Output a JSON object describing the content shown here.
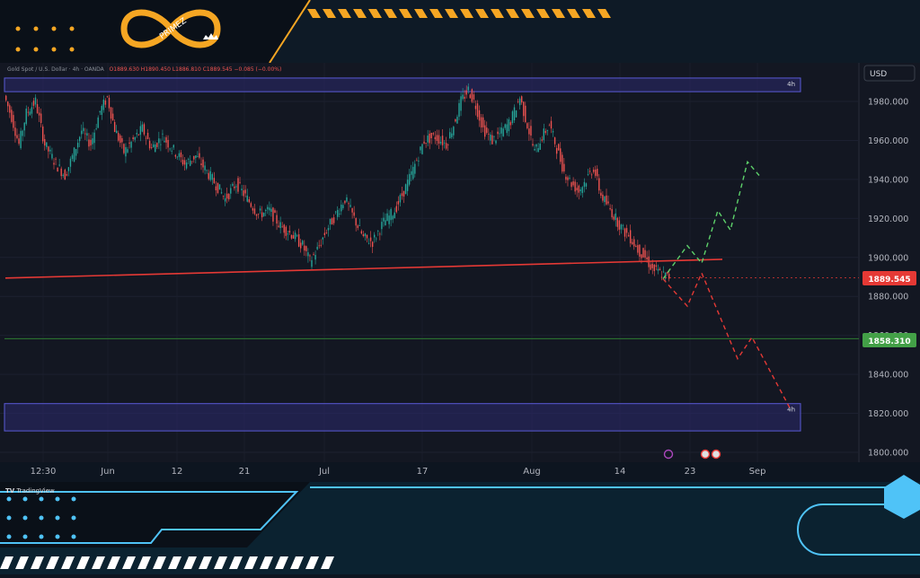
{
  "header": {
    "symbol_line": "Gold Spot / U.S. Dollar · 4h · OANDA",
    "ohlc_line": "O1889.630 H1890.450 L1886.810 C1889.545 −0.085 (−0.00%)"
  },
  "brand": {
    "logo_text": "PRIMEZ",
    "platform": "TradingView"
  },
  "price_axis": {
    "currency": "USD",
    "current_price": "1889.545",
    "target_price": "1858.310"
  },
  "zones": {
    "top_tag": "4h",
    "bottom_tag": "4h"
  },
  "colors": {
    "up": "#26a69a",
    "down": "#ef5350",
    "support_line": "#e53935",
    "target_line": "#2e7d32",
    "zone_fill": "#2b2a6e",
    "zone_border": "#5a5ad6",
    "bull_path": "#5dd16a",
    "bear_path": "#e53935",
    "accent_gold": "#f5a623",
    "accent_cyan": "#4fc3f7"
  },
  "chart_data": {
    "type": "candlestick",
    "title": "Gold Spot / U.S. Dollar · 4h · OANDA",
    "xlabel": "",
    "ylabel": "",
    "ylim": [
      1796,
      1994
    ],
    "x_tick_labels": [
      "12:30",
      "Jun",
      "12",
      "21",
      "Jul",
      "17",
      "Aug",
      "14",
      "23",
      "Sep"
    ],
    "y_ticks": [
      1800,
      1820,
      1840,
      1860,
      1880,
      1900,
      1920,
      1940,
      1960,
      1980
    ],
    "y_tick_labels": [
      "1800.000",
      "1820.000",
      "1840.000",
      "1860.000",
      "1880.000",
      "1900.000",
      "1920.000",
      "1940.000",
      "1960.000",
      "1980.000"
    ],
    "grid": true,
    "price_path_anchors": [
      [
        0,
        1983
      ],
      [
        4,
        1972
      ],
      [
        8,
        1958
      ],
      [
        12,
        1974
      ],
      [
        17,
        1980
      ],
      [
        22,
        1958
      ],
      [
        28,
        1948
      ],
      [
        33,
        1942
      ],
      [
        38,
        1954
      ],
      [
        42,
        1965
      ],
      [
        47,
        1958
      ],
      [
        52,
        1975
      ],
      [
        56,
        1982
      ],
      [
        60,
        1966
      ],
      [
        65,
        1954
      ],
      [
        70,
        1960
      ],
      [
        75,
        1966
      ],
      [
        80,
        1956
      ],
      [
        86,
        1962
      ],
      [
        92,
        1955
      ],
      [
        98,
        1948
      ],
      [
        104,
        1952
      ],
      [
        110,
        1944
      ],
      [
        116,
        1936
      ],
      [
        120,
        1930
      ],
      [
        126,
        1938
      ],
      [
        132,
        1930
      ],
      [
        138,
        1922
      ],
      [
        144,
        1924
      ],
      [
        150,
        1916
      ],
      [
        156,
        1912
      ],
      [
        162,
        1906
      ],
      [
        166,
        1898
      ],
      [
        170,
        1904
      ],
      [
        175,
        1914
      ],
      [
        180,
        1922
      ],
      [
        185,
        1930
      ],
      [
        190,
        1920
      ],
      [
        195,
        1910
      ],
      [
        200,
        1908
      ],
      [
        206,
        1918
      ],
      [
        212,
        1924
      ],
      [
        218,
        1936
      ],
      [
        222,
        1945
      ],
      [
        228,
        1960
      ],
      [
        234,
        1962
      ],
      [
        240,
        1958
      ],
      [
        244,
        1968
      ],
      [
        248,
        1980
      ],
      [
        252,
        1986
      ],
      [
        256,
        1978
      ],
      [
        260,
        1966
      ],
      [
        265,
        1960
      ],
      [
        270,
        1964
      ],
      [
        275,
        1970
      ],
      [
        280,
        1982
      ],
      [
        284,
        1968
      ],
      [
        288,
        1954
      ],
      [
        292,
        1962
      ],
      [
        296,
        1968
      ],
      [
        300,
        1956
      ],
      [
        304,
        1944
      ],
      [
        308,
        1938
      ],
      [
        312,
        1934
      ],
      [
        316,
        1940
      ],
      [
        320,
        1946
      ],
      [
        324,
        1932
      ],
      [
        328,
        1926
      ],
      [
        332,
        1920
      ],
      [
        336,
        1914
      ],
      [
        340,
        1910
      ],
      [
        344,
        1904
      ],
      [
        348,
        1900
      ],
      [
        352,
        1894
      ],
      [
        356,
        1892
      ],
      [
        360,
        1890
      ]
    ],
    "support_line": {
      "x": [
        0,
        800
      ],
      "y": [
        1889.4,
        1899.0
      ]
    },
    "current_price_line": 1889.545,
    "target_line": 1858.31,
    "zones": [
      {
        "from": 1985,
        "to": 1992,
        "label": "4h"
      },
      {
        "from": 1811,
        "to": 1825,
        "label": "4h"
      }
    ],
    "bull_path": [
      [
        738,
        1889
      ],
      [
        765,
        1906
      ],
      [
        781,
        1897
      ],
      [
        799,
        1924
      ],
      [
        813,
        1914
      ],
      [
        832,
        1949
      ],
      [
        845,
        1942
      ]
    ],
    "bear_path": [
      [
        738,
        1889
      ],
      [
        765,
        1875
      ],
      [
        781,
        1892
      ],
      [
        821,
        1848
      ],
      [
        837,
        1859
      ],
      [
        880,
        1822
      ]
    ]
  }
}
